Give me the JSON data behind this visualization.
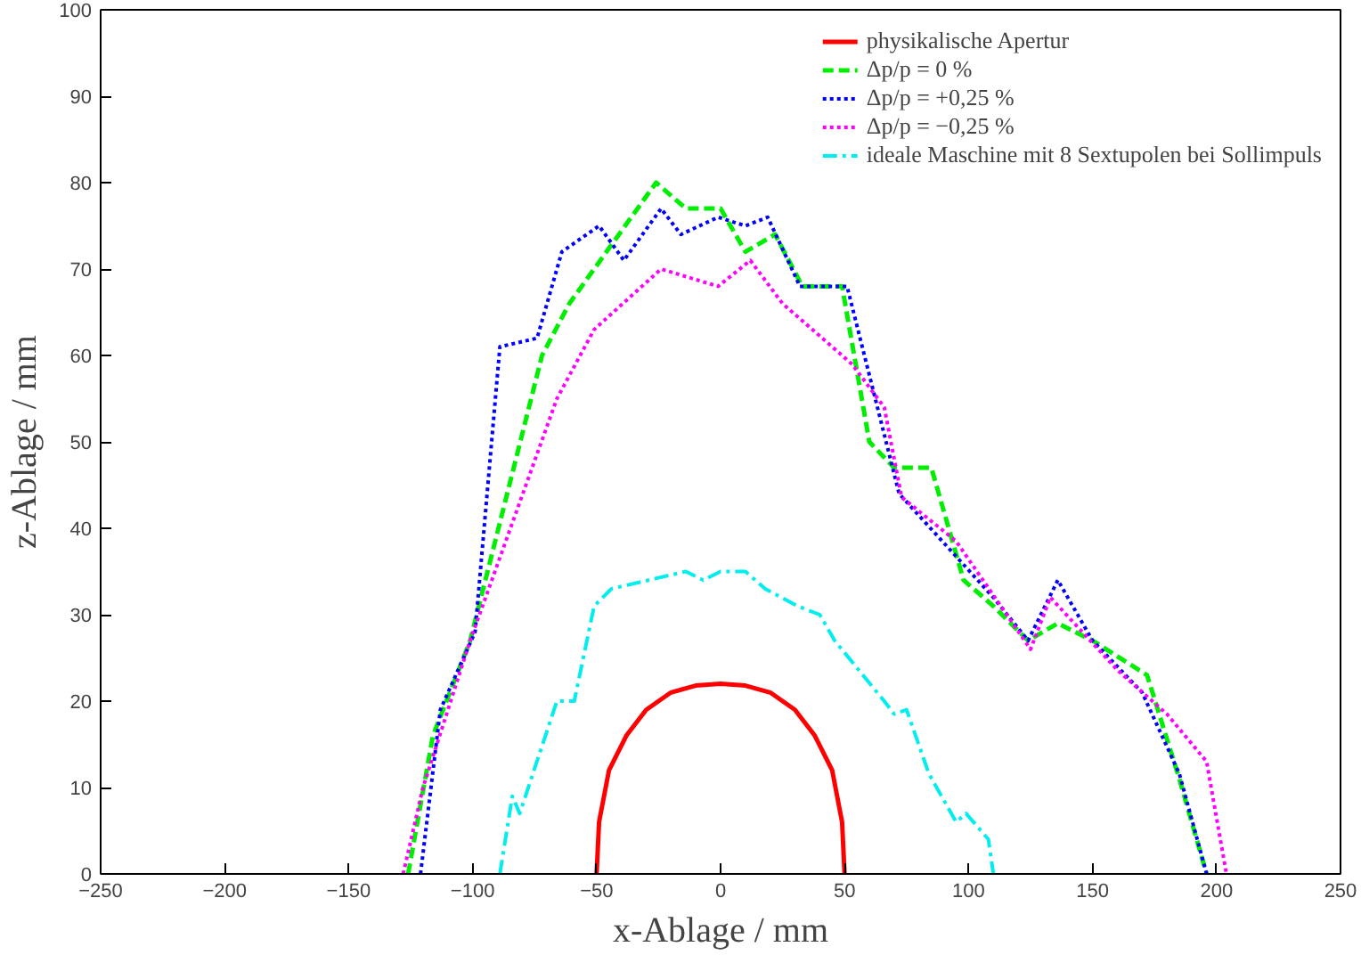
{
  "chart_data": {
    "type": "line",
    "xlabel": "x-Ablage / mm",
    "ylabel": "z-Ablage / mm",
    "xlim": [
      -250,
      250
    ],
    "ylim": [
      0,
      100
    ],
    "xticks": [
      -250,
      -200,
      -150,
      -100,
      -50,
      0,
      50,
      100,
      150,
      200,
      250
    ],
    "yticks": [
      0,
      10,
      20,
      30,
      40,
      50,
      60,
      70,
      80,
      90,
      100
    ],
    "grid": false,
    "legend": "top right",
    "marker": "none",
    "series": [
      {
        "name": "physikalische Apertur",
        "color": "#ff0000",
        "line_style": "solid",
        "x": [
          -50,
          -49,
          -45,
          -38,
          -30,
          -20,
          -10,
          0,
          10,
          20,
          30,
          38,
          45,
          49,
          50
        ],
        "values": [
          0,
          6,
          12,
          16,
          19,
          21,
          21.8,
          22,
          21.8,
          21,
          19,
          16,
          12,
          6,
          0
        ]
      },
      {
        "name": "Δp/p = 0 %",
        "color": "#00ee00",
        "line_style": "dashed",
        "x": [
          -126,
          -116,
          -101,
          -72,
          -61,
          -26,
          -14,
          0,
          10,
          22,
          33,
          49,
          60,
          70,
          85,
          98,
          110,
          124,
          136,
          150,
          172,
          185,
          196
        ],
        "values": [
          0,
          16,
          27,
          60,
          66,
          80,
          77,
          77,
          72,
          74,
          68,
          68,
          50,
          47,
          47,
          34,
          31,
          27,
          29,
          27,
          23,
          11,
          0
        ]
      },
      {
        "name": "Δp/p = +0,25 %",
        "color": "#0000ff",
        "line_style": "dotted",
        "x": [
          -121,
          -113,
          -99,
          -89,
          -74,
          -64,
          -49,
          -39,
          -24,
          -16,
          -1,
          10,
          19,
          32,
          51,
          72,
          110,
          124,
          136,
          150,
          170,
          185,
          196
        ],
        "values": [
          0,
          19,
          28,
          61,
          62,
          72,
          75,
          71,
          77,
          74,
          76,
          75,
          76,
          68,
          68,
          44,
          32,
          27,
          34,
          27,
          21,
          11.6,
          0
        ]
      },
      {
        "name": "Δp/p = −0,25 %",
        "color": "#ff00ff",
        "line_style": "dotted",
        "x": [
          -128,
          -120,
          -101,
          -66,
          -51,
          -24,
          -1,
          12,
          25,
          53,
          66,
          73,
          95,
          125,
          133,
          160,
          180,
          196,
          204
        ],
        "values": [
          0,
          10,
          27,
          55,
          63,
          70,
          68,
          71,
          66,
          59,
          54,
          43.6,
          38.5,
          26,
          32,
          23.6,
          18.5,
          13,
          0
        ]
      },
      {
        "name": "ideale Maschine mit 8 Sextupolen bei Sollimpuls",
        "color": "#00eeee",
        "line_style": "dashdot",
        "x": [
          -89,
          -84,
          -81,
          -66,
          -59,
          -51,
          -44,
          -29,
          -14,
          -7,
          0,
          10,
          18,
          31,
          40,
          46,
          66,
          70,
          75,
          84,
          95,
          99,
          108,
          110
        ],
        "values": [
          0,
          9,
          7,
          20,
          20,
          31,
          33,
          34,
          35,
          34,
          35,
          35,
          33,
          31,
          30,
          27,
          20,
          18.5,
          19,
          11.6,
          6,
          7,
          4,
          0
        ]
      }
    ]
  }
}
